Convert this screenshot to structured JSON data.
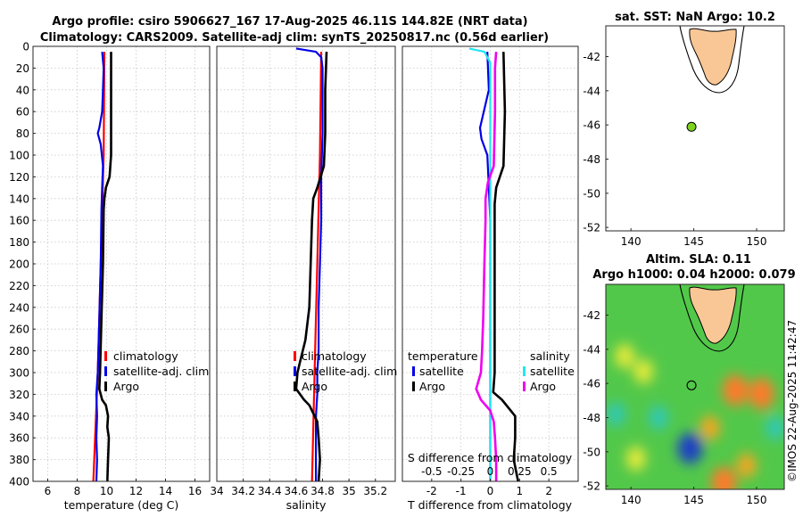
{
  "figure": {
    "title_line1": "Argo profile: csiro 5906627_167 17-Aug-2025 46.11S 144.82E (NRT data)",
    "title_line2": "Climatology: CARS2009. Satellite-adj clim: synTS_20250817.nc (0.56d earlier)",
    "stamp": "©IMOS 22-Aug-2025 11:42:47"
  },
  "colors": {
    "red": "#ff0000",
    "blue": "#0000e6",
    "black": "#000000",
    "cyan": "#22e5f0",
    "magenta": "#f000f0",
    "land": "#f9c796",
    "ocean": "#ffffff",
    "point": "#7fd320"
  },
  "chart_data": [
    {
      "type": "line",
      "id": "temperature",
      "xlabel": "temperature (deg C)",
      "xlim": [
        5,
        17
      ],
      "ylim": [
        0,
        400
      ],
      "xticks": [
        6,
        8,
        10,
        12,
        14,
        16
      ],
      "xtick_labels": [
        "6",
        "8",
        "10",
        "12",
        "14",
        "16"
      ],
      "yticks": [
        0,
        20,
        40,
        60,
        80,
        100,
        120,
        140,
        160,
        180,
        200,
        220,
        240,
        260,
        280,
        300,
        320,
        340,
        360,
        380,
        400
      ],
      "ytick_labels": [
        "0",
        "20",
        "40",
        "60",
        "80",
        "100",
        "120",
        "140",
        "160",
        "180",
        "200",
        "220",
        "240",
        "260",
        "280",
        "300",
        "320",
        "340",
        "360",
        "380",
        "400"
      ],
      "legend": [
        "climatology",
        "satellite-adj. clim",
        "Argo"
      ],
      "series": [
        {
          "name": "climatology",
          "color": "#ff0000",
          "depth": [
            5,
            100,
            150,
            200,
            250,
            300,
            350,
            400
          ],
          "values": [
            9.85,
            9.8,
            9.7,
            9.6,
            9.5,
            9.4,
            9.25,
            9.1
          ]
        },
        {
          "name": "satellite-adj. clim",
          "color": "#0000e6",
          "depth": [
            5,
            20,
            40,
            60,
            75,
            80,
            90,
            110,
            130,
            150,
            200,
            250,
            300,
            320,
            340,
            360,
            380,
            400
          ],
          "values": [
            9.7,
            9.8,
            9.75,
            9.7,
            9.5,
            9.4,
            9.6,
            9.75,
            9.7,
            9.65,
            9.6,
            9.5,
            9.4,
            9.3,
            9.35,
            9.3,
            9.35,
            9.3
          ]
        },
        {
          "name": "Argo",
          "color": "#000000",
          "depth": [
            5,
            30,
            60,
            100,
            120,
            130,
            140,
            150,
            200,
            250,
            300,
            315,
            325,
            330,
            340,
            350,
            360,
            380,
            400
          ],
          "values": [
            10.3,
            10.3,
            10.3,
            10.3,
            10.2,
            9.95,
            9.85,
            9.8,
            9.75,
            9.65,
            9.55,
            9.5,
            9.7,
            9.95,
            10.1,
            10.05,
            10.15,
            10.1,
            10.05
          ]
        }
      ]
    },
    {
      "type": "line",
      "id": "salinity",
      "xlabel": "salinity",
      "xlim": [
        34,
        35.35
      ],
      "ylim": [
        0,
        400
      ],
      "xticks": [
        34,
        34.2,
        34.4,
        34.6,
        34.8,
        35,
        35.2
      ],
      "xtick_labels": [
        "34",
        "34.2",
        "34.4",
        "34.6",
        "34.8",
        "35",
        "35.2"
      ],
      "legend": [
        "climatology",
        "satellite-adj. clim",
        "Argo"
      ],
      "series": [
        {
          "name": "climatology",
          "color": "#ff0000",
          "depth": [
            5,
            100,
            200,
            300,
            400
          ],
          "values": [
            34.79,
            34.78,
            34.76,
            34.74,
            34.72
          ]
        },
        {
          "name": "satellite-adj. clim",
          "color": "#0000e6",
          "depth": [
            2,
            5,
            10,
            20,
            40,
            80,
            120,
            160,
            200,
            240,
            280,
            300,
            320,
            340,
            360,
            380,
            400
          ],
          "values": [
            34.6,
            34.75,
            34.79,
            34.8,
            34.8,
            34.8,
            34.79,
            34.79,
            34.78,
            34.77,
            34.77,
            34.76,
            34.76,
            34.75,
            34.75,
            34.75,
            34.75
          ]
        },
        {
          "name": "Argo",
          "color": "#000000",
          "depth": [
            5,
            40,
            80,
            110,
            130,
            140,
            160,
            200,
            240,
            270,
            290,
            300,
            315,
            325,
            330,
            345,
            360,
            380,
            400
          ],
          "values": [
            34.83,
            34.82,
            34.82,
            34.81,
            34.76,
            34.73,
            34.72,
            34.71,
            34.7,
            34.67,
            34.63,
            34.61,
            34.6,
            34.66,
            34.7,
            34.76,
            34.77,
            34.78,
            34.77
          ]
        }
      ]
    },
    {
      "type": "line",
      "id": "difference",
      "xlabel": "T difference from climatology",
      "xlabel_top": "S difference from climatology",
      "xlim": [
        -3,
        3
      ],
      "ylim": [
        0,
        400
      ],
      "xticks": [
        -2,
        -1,
        0,
        1,
        2
      ],
      "xtick_labels": [
        "-2",
        "-1",
        "0",
        "1",
        "2"
      ],
      "s_xticks": [
        -0.5,
        -0.25,
        0,
        0.25,
        0.5
      ],
      "s_xtick_labels": [
        "-0.5",
        "-0.25",
        "0",
        "0.25",
        "0.5"
      ],
      "legend_temperature_title": "temperature",
      "legend_salinity_title": "salinity",
      "legend_temperature": [
        "satellite",
        "Argo"
      ],
      "legend_salinity": [
        "satellite",
        "Argo"
      ],
      "series": [
        {
          "name": "T satellite",
          "color": "#0000e6",
          "depth": [
            5,
            40,
            75,
            85,
            100,
            130,
            160,
            200,
            250,
            300,
            400
          ],
          "values": [
            -0.1,
            -0.05,
            -0.35,
            -0.3,
            -0.1,
            -0.05,
            0,
            0,
            0,
            0,
            0
          ]
        },
        {
          "name": "T Argo",
          "color": "#000000",
          "depth": [
            5,
            60,
            110,
            130,
            145,
            200,
            250,
            300,
            318,
            325,
            340,
            360,
            380,
            400
          ],
          "values": [
            0.45,
            0.5,
            0.45,
            0.2,
            0.15,
            0.15,
            0.15,
            0.15,
            0.1,
            0.4,
            0.85,
            0.85,
            0.8,
            0.95
          ]
        },
        {
          "name": "S satellite",
          "color": "#22e5f0",
          "depth": [
            2,
            5,
            15,
            40,
            100,
            200,
            300,
            400
          ],
          "values": [
            -0.18,
            -0.05,
            0,
            0,
            0,
            0,
            0,
            0
          ]
        },
        {
          "name": "S Argo",
          "color": "#f000f0",
          "depth": [
            5,
            20,
            60,
            110,
            125,
            140,
            160,
            200,
            250,
            280,
            300,
            315,
            325,
            335,
            345,
            360,
            380,
            400
          ],
          "values": [
            0.05,
            0.04,
            0.04,
            0.03,
            -0.02,
            -0.04,
            -0.04,
            -0.05,
            -0.06,
            -0.07,
            -0.08,
            -0.12,
            -0.08,
            0.0,
            0.03,
            0.04,
            0.05,
            0.05
          ]
        }
      ]
    },
    {
      "type": "map",
      "id": "sst-map",
      "title": "sat. SST: NaN Argo: 10.2",
      "xlim": [
        138,
        152.2
      ],
      "ylim": [
        -52.2,
        -40.2
      ],
      "xticks": [
        140,
        145,
        150
      ],
      "xtick_labels": [
        "140",
        "145",
        "150"
      ],
      "yticks": [
        -42,
        -44,
        -46,
        -48,
        -50,
        -52
      ],
      "ytick_labels": [
        "-42",
        "-44",
        "-46",
        "-48",
        "-50",
        "-52"
      ],
      "argo_point": {
        "lon": 144.82,
        "lat": -46.11
      }
    },
    {
      "type": "heatmap",
      "id": "sla-map",
      "title_line1": "Altim. SLA: 0.11",
      "title_line2": "Argo h1000: 0.04 h2000: 0.079",
      "xlim": [
        138,
        152.2
      ],
      "ylim": [
        -52.2,
        -40.2
      ],
      "xticks": [
        140,
        145,
        150
      ],
      "xtick_labels": [
        "140",
        "145",
        "150"
      ],
      "yticks": [
        -42,
        -44,
        -46,
        -48,
        -50,
        -52
      ],
      "ytick_labels": [
        "-42",
        "-44",
        "-46",
        "-48",
        "-50",
        "-52"
      ],
      "argo_point": {
        "lon": 144.82,
        "lat": -46.11
      },
      "sla_blobs": [
        {
          "lon": 144.7,
          "lat": -49.8,
          "value": -0.3
        },
        {
          "lon": 139.5,
          "lat": -44.4,
          "value": 0.1
        },
        {
          "lon": 141.0,
          "lat": -45.3,
          "value": 0.12
        },
        {
          "lon": 148.3,
          "lat": -46.4,
          "value": 0.18
        },
        {
          "lon": 150.4,
          "lat": -46.6,
          "value": 0.2
        },
        {
          "lon": 146.3,
          "lat": -48.6,
          "value": 0.15
        },
        {
          "lon": 149.2,
          "lat": -50.8,
          "value": 0.16
        },
        {
          "lon": 140.4,
          "lat": -50.4,
          "value": 0.12
        },
        {
          "lon": 147.4,
          "lat": -51.8,
          "value": 0.2
        },
        {
          "lon": 138.8,
          "lat": -47.8,
          "value": -0.08
        },
        {
          "lon": 151.5,
          "lat": -48.6,
          "value": -0.1
        },
        {
          "lon": 142.2,
          "lat": -48.0,
          "value": -0.06
        }
      ]
    }
  ]
}
